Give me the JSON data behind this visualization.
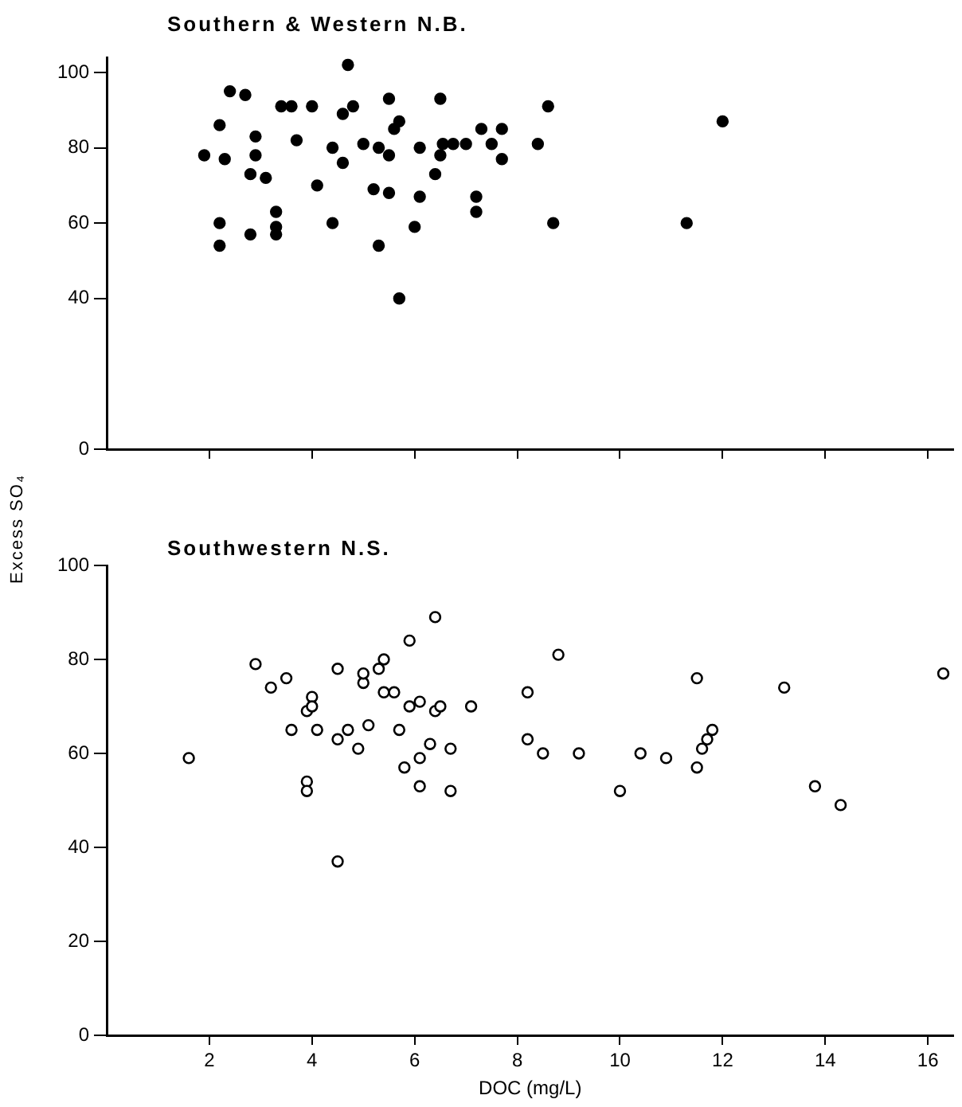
{
  "chart_data": [
    {
      "type": "scatter",
      "title": "Southern & Western N.B.",
      "xlim": [
        0,
        16.5
      ],
      "xticks": [
        {
          "value": 2,
          "label": null
        },
        {
          "value": 4,
          "label": null
        },
        {
          "value": 6,
          "label": null
        },
        {
          "value": 8,
          "label": null
        },
        {
          "value": 10,
          "label": null
        },
        {
          "value": 12,
          "label": null
        },
        {
          "value": 14,
          "label": null
        },
        {
          "value": 16,
          "label": null
        }
      ],
      "ylim": [
        0,
        104
      ],
      "yticks": [
        0,
        40,
        60,
        80,
        100
      ],
      "tick_labels": "y",
      "grid": false,
      "legend": false,
      "marker": "circle",
      "series": [
        {
          "color": "#000000",
          "x": [
            1.9,
            2.2,
            2.3,
            2.2,
            2.2,
            2.4,
            2.7,
            2.8,
            2.9,
            2.9,
            2.8,
            3.1,
            3.3,
            3.3,
            3.3,
            3.4,
            3.6,
            4.0,
            3.7,
            4.1,
            4.4,
            4.4,
            4.6,
            4.7,
            4.8,
            4.6,
            5.0,
            5.3,
            5.2,
            5.5,
            5.3,
            5.5,
            5.5,
            5.6,
            5.7,
            5.7,
            6.0,
            6.1,
            6.1,
            6.5,
            6.5,
            6.4,
            6.55,
            6.75,
            7.0,
            7.3,
            7.2,
            7.2,
            7.5,
            7.7,
            7.7,
            8.6,
            8.4,
            8.7,
            11.3,
            12.0
          ],
          "values": [
            78,
            86,
            77,
            60,
            54,
            95,
            94,
            73,
            83,
            78,
            57,
            72,
            63,
            59,
            57,
            91,
            91,
            91,
            82,
            70,
            80,
            60,
            89,
            102,
            91,
            76,
            81,
            80,
            69,
            68,
            54,
            78,
            93,
            85,
            87,
            40,
            59,
            80,
            67,
            93,
            78,
            73,
            81,
            81,
            81,
            85,
            67,
            63,
            81,
            85,
            77,
            91,
            81,
            60,
            60,
            87
          ]
        }
      ]
    },
    {
      "type": "scatter",
      "title": "Southwestern N.S.",
      "xlabel": "DOC (mg/L)",
      "ylabel": "Excess SO₄",
      "xlim": [
        0,
        16.5
      ],
      "xticks": [
        2,
        4,
        6,
        8,
        10,
        12,
        14,
        16
      ],
      "ylim": [
        0,
        100
      ],
      "yticks": [
        0,
        20,
        40,
        60,
        80,
        100
      ],
      "grid": false,
      "legend": false,
      "marker": "circle",
      "series": [
        {
          "color": "#000000",
          "x": [
            1.6,
            2.9,
            3.2,
            3.5,
            3.6,
            3.9,
            4.0,
            4.0,
            3.9,
            3.9,
            4.1,
            4.5,
            4.5,
            4.7,
            4.5,
            4.9,
            5.0,
            5.0,
            5.1,
            5.3,
            5.4,
            5.4,
            5.6,
            5.7,
            5.9,
            5.9,
            5.8,
            6.1,
            6.1,
            6.1,
            6.4,
            6.4,
            6.5,
            6.3,
            6.7,
            6.7,
            7.1,
            8.8,
            8.2,
            8.2,
            8.5,
            9.2,
            10.0,
            10.4,
            10.9,
            11.5,
            11.5,
            11.6,
            11.7,
            11.8,
            13.2,
            13.8,
            14.3,
            16.3
          ],
          "values": [
            59,
            79,
            74,
            76,
            65,
            69,
            72,
            70,
            54,
            52,
            65,
            78,
            63,
            65,
            37,
            61,
            75,
            77,
            66,
            78,
            80,
            73,
            73,
            65,
            84,
            70,
            57,
            71,
            59,
            53,
            89,
            69,
            70,
            62,
            61,
            52,
            70,
            81,
            73,
            63,
            60,
            60,
            52,
            60,
            59,
            76,
            57,
            61,
            63,
            65,
            74,
            53,
            49,
            77
          ]
        }
      ]
    }
  ]
}
